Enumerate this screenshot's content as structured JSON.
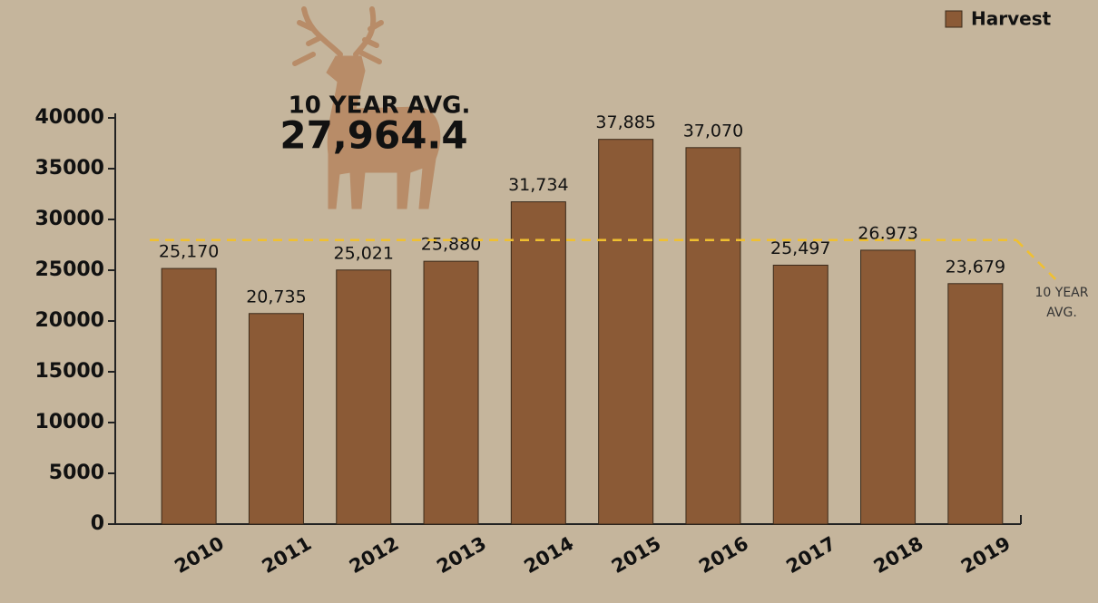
{
  "chart_data": {
    "type": "bar",
    "categories": [
      "2010",
      "2011",
      "2012",
      "2013",
      "2014",
      "2015",
      "2016",
      "2017",
      "2018",
      "2019"
    ],
    "series": [
      {
        "name": "Harvest",
        "color": "#8b5a36",
        "values": [
          25170,
          20735,
          25021,
          25880,
          31734,
          37885,
          37070,
          25497,
          26973,
          23679
        ],
        "value_labels": [
          "25,170",
          "20,735",
          "25,021",
          "25,880",
          "31,734",
          "37,885",
          "37,070",
          "25,497",
          "26,973",
          "23,679"
        ]
      }
    ],
    "ylim": [
      0,
      40000
    ],
    "yticks": [
      0,
      5000,
      10000,
      15000,
      20000,
      25000,
      30000,
      35000,
      40000
    ],
    "legend": "top-right",
    "average_line": {
      "value": 27964.4,
      "label": "27,964.4",
      "title": "10 YEAR AVG.",
      "side_label": [
        "10 YEAR",
        "AVG."
      ],
      "color": "#f0c030"
    }
  }
}
